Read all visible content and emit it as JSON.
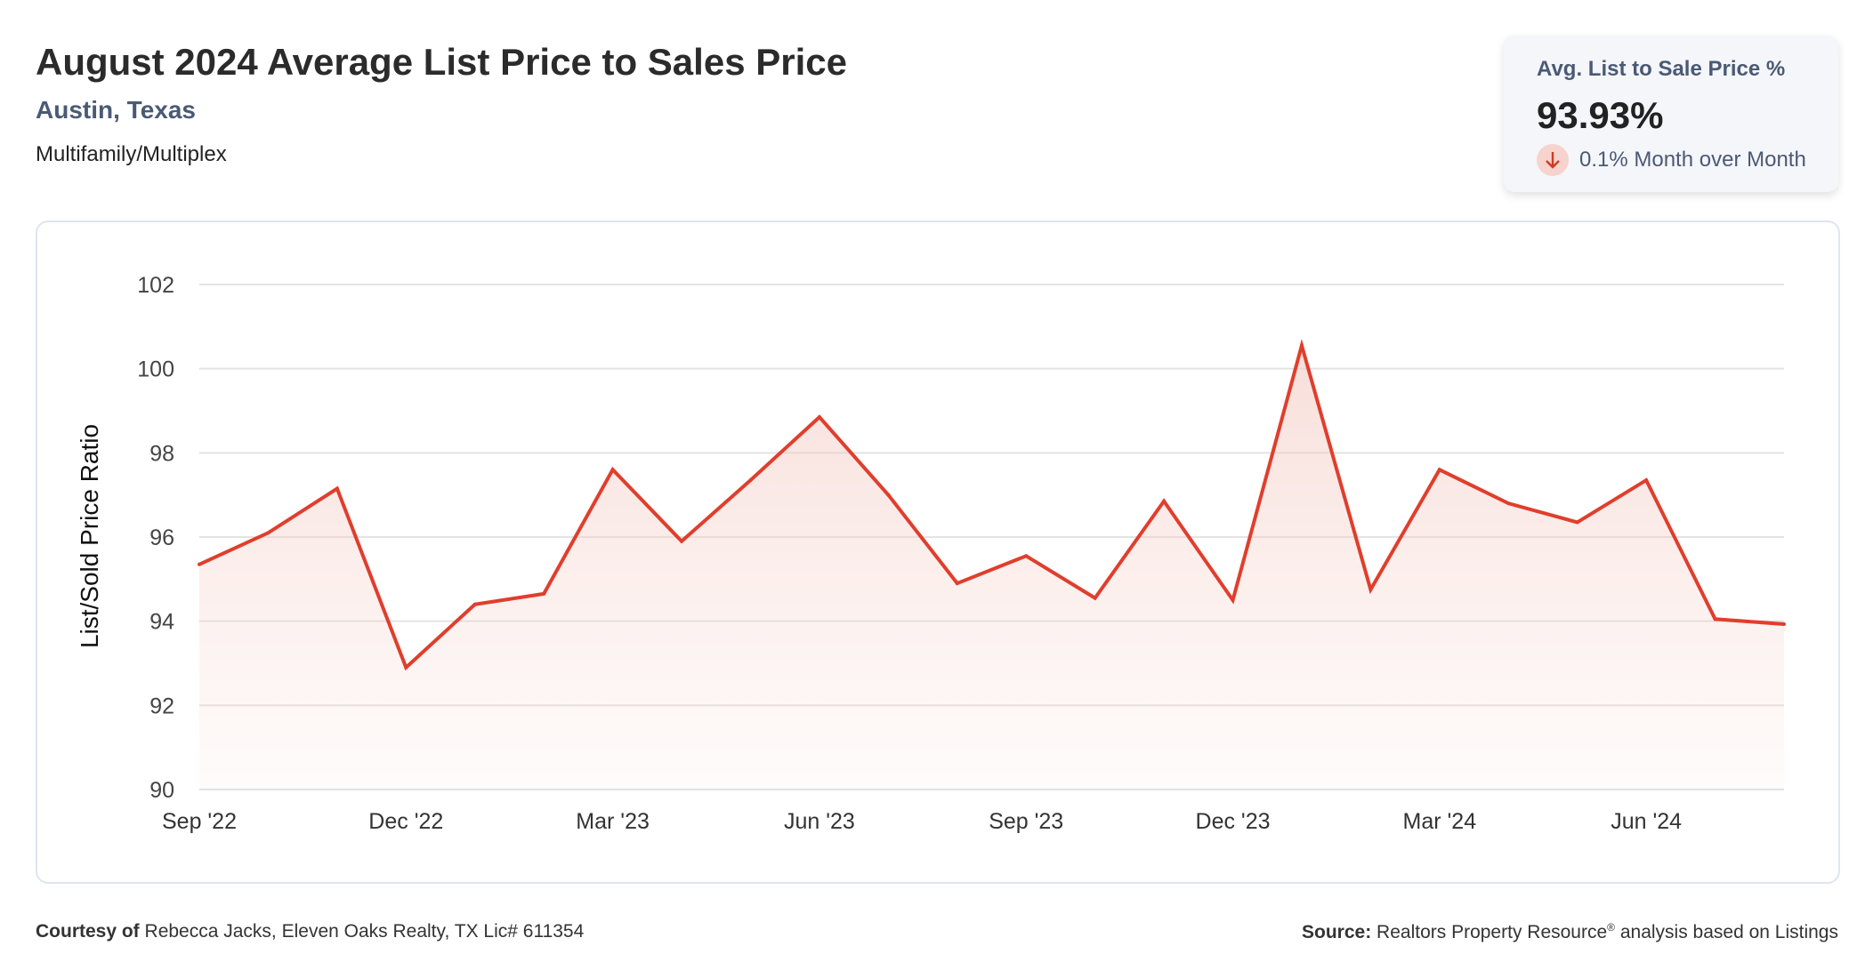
{
  "header": {
    "title": "August 2024 Average List Price to Sales Price",
    "location": "Austin, Texas",
    "property_type": "Multifamily/Multiplex"
  },
  "kpi": {
    "label": "Avg. List to Sale Price %",
    "value": "93.93%",
    "change": "0.1% Month over Month",
    "direction": "down",
    "icon": "arrow-down-icon"
  },
  "footer": {
    "courtesy_label": "Courtesy of",
    "courtesy_text": "Rebecca Jacks, Eleven Oaks Realty, TX Lic# 611354",
    "source_label": "Source:",
    "source_text": "Realtors Property Resource",
    "source_sup": "®",
    "source_tail": " analysis based on Listings"
  },
  "colors": {
    "line": "#e03e2d",
    "fill": "#f6d3cc",
    "grid": "#e3e3e3"
  },
  "chart_data": {
    "type": "area",
    "ylabel": "List/Sold Price Ratio",
    "ylim": [
      90,
      102
    ],
    "yticks": [
      90,
      92,
      94,
      96,
      98,
      100,
      102
    ],
    "x": [
      "Sep '22",
      "Oct '22",
      "Nov '22",
      "Dec '22",
      "Jan '23",
      "Feb '23",
      "Mar '23",
      "Apr '23",
      "May '23",
      "Jun '23",
      "Jul '23",
      "Aug '23",
      "Sep '23",
      "Oct '23",
      "Nov '23",
      "Dec '23",
      "Jan '24",
      "Feb '24",
      "Mar '24",
      "Apr '24",
      "May '24",
      "Jun '24",
      "Jul '24",
      "Aug '24"
    ],
    "xtick_labels": [
      "Sep '22",
      "Dec '22",
      "Mar '23",
      "Jun '23",
      "Sep '23",
      "Dec '23",
      "Mar '24",
      "Jun '24"
    ],
    "values": [
      95.35,
      96.1,
      97.15,
      92.9,
      94.4,
      94.65,
      97.6,
      95.9,
      97.35,
      98.85,
      97.0,
      94.9,
      95.55,
      94.55,
      96.85,
      94.5,
      100.55,
      94.75,
      97.6,
      96.8,
      96.35,
      97.35,
      94.05,
      93.93
    ]
  }
}
